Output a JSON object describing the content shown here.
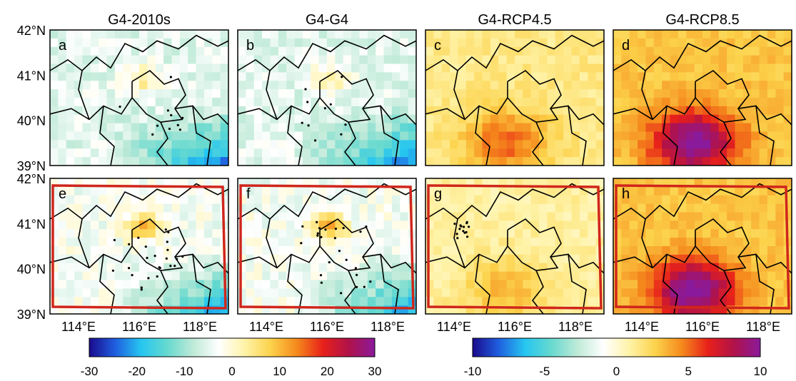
{
  "chart_data": {
    "type": "heatmap",
    "columns": [
      "G4-2010s",
      "G4-G4",
      "G4-RCP4.5",
      "G4-RCP8.5"
    ],
    "panels": [
      {
        "label": "a",
        "row": 0,
        "col": 0,
        "scale": 0,
        "level": -5,
        "outline": false
      },
      {
        "label": "b",
        "row": 0,
        "col": 1,
        "scale": 0,
        "level": -5,
        "outline": false
      },
      {
        "label": "c",
        "row": 0,
        "col": 2,
        "scale": 1,
        "level": 1.5,
        "outline": false
      },
      {
        "label": "d",
        "row": 0,
        "col": 3,
        "scale": 1,
        "level": 3,
        "outline": false
      },
      {
        "label": "e",
        "row": 1,
        "col": 0,
        "scale": 0,
        "level": -3,
        "outline": true
      },
      {
        "label": "f",
        "row": 1,
        "col": 1,
        "scale": 0,
        "level": -3,
        "outline": true
      },
      {
        "label": "g",
        "row": 1,
        "col": 2,
        "scale": 1,
        "level": 1,
        "outline": true
      },
      {
        "label": "h",
        "row": 1,
        "col": 3,
        "scale": 1,
        "level": 3,
        "outline": true
      }
    ],
    "y_ticks": [
      "42°N",
      "41°N",
      "40°N",
      "39°N"
    ],
    "x_ticks": [
      "114°E",
      "116°E",
      "118°E"
    ],
    "colorbars": [
      {
        "range": [
          -30,
          30
        ],
        "ticks": [
          "-30",
          "-20",
          "-10",
          "0",
          "10",
          "20",
          "30"
        ]
      },
      {
        "range": [
          -10,
          10
        ],
        "ticks": [
          "-10",
          "-5",
          "0",
          "5",
          "10"
        ]
      }
    ],
    "colormap": [
      "#1a0a8c",
      "#1f5fe0",
      "#26c6f0",
      "#66d9cf",
      "#bfead8",
      "#ffffff",
      "#fff3a8",
      "#fcd24a",
      "#f58a1c",
      "#e8201a",
      "#b0124a",
      "#8a1a9c"
    ],
    "outline_color": "#d0261c",
    "border_color": "#000000"
  }
}
